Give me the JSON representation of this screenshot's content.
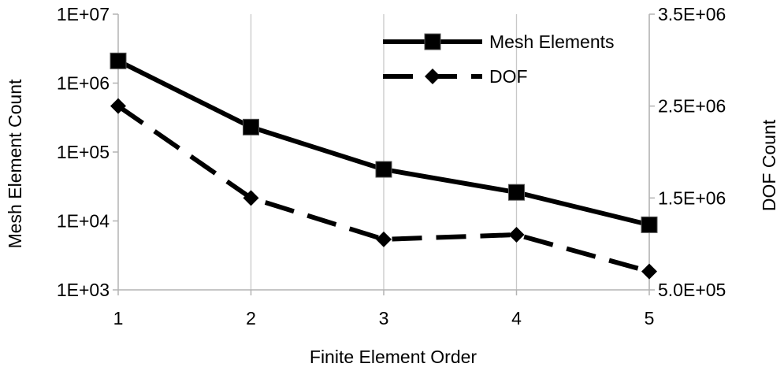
{
  "chart_data": {
    "type": "line",
    "xlabel": "Finite Element Order",
    "ylabel": "Mesh Element Count",
    "y2label": "DOF Count",
    "x": [
      1,
      2,
      3,
      4,
      5
    ],
    "x_ticks": [
      "1",
      "2",
      "3",
      "4",
      "5"
    ],
    "xlim": [
      1,
      5
    ],
    "ylim": [
      1000,
      10000000
    ],
    "yscale": "log",
    "y_ticks": [
      "1E+03",
      "1E+04",
      "1E+05",
      "1E+06",
      "1E+07"
    ],
    "y2lim": [
      500000,
      3500000
    ],
    "y2scale": "linear",
    "y2_ticks": [
      "5.0E+05",
      "1.5E+06",
      "2.5E+06",
      "3.5E+06"
    ],
    "grid": "vertical",
    "legend_position": "top-right",
    "series": [
      {
        "name": "Mesh Elements",
        "axis": "left",
        "marker": "square",
        "line": "solid",
        "color": "#000000",
        "values": [
          2100000,
          230000,
          56000,
          26000,
          8800
        ]
      },
      {
        "name": "DOF",
        "axis": "right",
        "marker": "diamond",
        "line": "dashed",
        "color": "#000000",
        "values": [
          2500000,
          1500000,
          1050000,
          1100000,
          700000
        ]
      }
    ]
  }
}
